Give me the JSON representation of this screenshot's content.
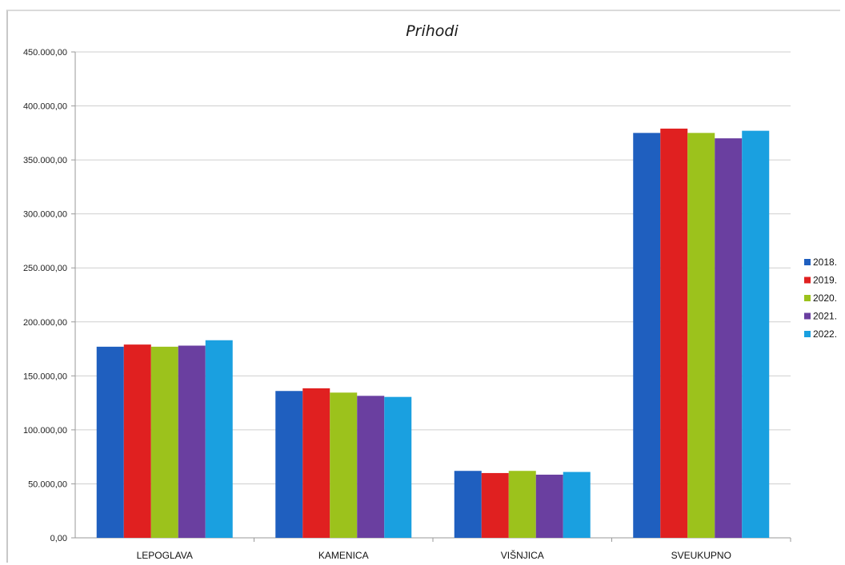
{
  "chart_data": {
    "type": "bar",
    "title": "Prihodi",
    "categories": [
      "LEPOGLAVA",
      "KAMENICA",
      "VIŠNJICA",
      "SVEUKUPNO"
    ],
    "series": [
      {
        "name": "2018.",
        "color": "#1f5fbf",
        "values": [
          177000,
          136000,
          62000,
          375000
        ]
      },
      {
        "name": "2019.",
        "color": "#e02020",
        "values": [
          179000,
          138500,
          60000,
          379000
        ]
      },
      {
        "name": "2020.",
        "color": "#9cc21c",
        "values": [
          177000,
          134500,
          62000,
          375000
        ]
      },
      {
        "name": "2021.",
        "color": "#6a3fa0",
        "values": [
          178000,
          131500,
          58500,
          370000
        ]
      },
      {
        "name": "2022.",
        "color": "#1aa0e0",
        "values": [
          183000,
          130500,
          61000,
          377000
        ]
      }
    ],
    "ylim": [
      0,
      450000
    ],
    "yticks": [
      0,
      50000,
      100000,
      150000,
      200000,
      250000,
      300000,
      350000,
      400000,
      450000
    ],
    "ytick_labels": [
      "0,00",
      "50.000,00",
      "100.000,00",
      "150.000,00",
      "200.000,00",
      "250.000,00",
      "300.000,00",
      "350.000,00",
      "400.000,00",
      "450.000,00"
    ],
    "grid": true,
    "legend_position": "right"
  }
}
